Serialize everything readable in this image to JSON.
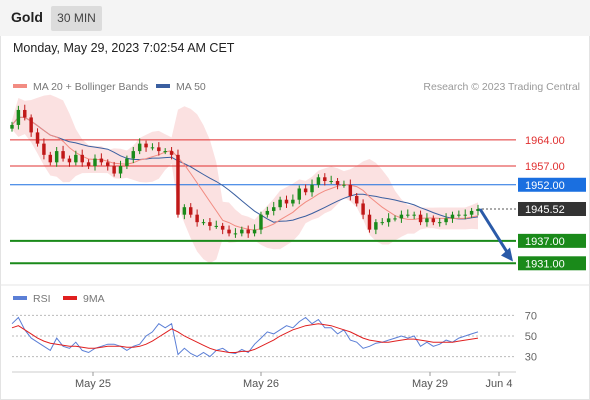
{
  "header": {
    "instrument": "Gold",
    "timeframe": "30 MIN"
  },
  "datetime": "Monday, May 29, 2023 7:02:54 AM CET",
  "legend": [
    {
      "label": "MA 20 + Bollinger Bands",
      "color": "#f28c82"
    },
    {
      "label": "MA 50",
      "color": "#3a5fa0"
    }
  ],
  "rsi_legend": [
    {
      "label": "RSI",
      "color": "#5b7fd6"
    },
    {
      "label": "9MA",
      "color": "#e02020"
    }
  ],
  "copyright": "Research © 2023 Trading Central",
  "colors": {
    "resistance": "#e03030",
    "pivot": "#1a6fe0",
    "support": "#1a8a1a",
    "last_price": "#333333",
    "candle_up": "#1a8a1a",
    "candle_down": "#c01818",
    "bollinger_band": "#fadcdc",
    "ma20": "#f28c82",
    "ma50": "#3a5fa0",
    "forecast_arrow": "#2a5aa8"
  },
  "chart_data": [
    {
      "type": "candlestick",
      "title": "Gold",
      "timeframe": "30 MIN",
      "x_ticks": [
        "May 25",
        "May 26",
        "May 29",
        "Jun 4"
      ],
      "y_range": [
        1926,
        1976
      ],
      "last_price": 1945.52,
      "levels": [
        {
          "value": 1964.0,
          "label": "1964.00",
          "kind": "resistance"
        },
        {
          "value": 1957.0,
          "label": "1957.00",
          "kind": "resistance"
        },
        {
          "value": 1952.0,
          "label": "1952.00",
          "kind": "pivot"
        },
        {
          "value": 1937.0,
          "label": "1937.00",
          "kind": "support"
        },
        {
          "value": 1931.0,
          "label": "1931.00",
          "kind": "support"
        }
      ],
      "price_path": [
        1968,
        1972,
        1970,
        1966,
        1963,
        1960,
        1958,
        1961,
        1959,
        1958,
        1960,
        1958,
        1957,
        1959,
        1958,
        1957,
        1955,
        1957,
        1959,
        1961,
        1963,
        1962,
        1962,
        1961,
        1961,
        1960,
        1944,
        1946,
        1944,
        1942,
        1942,
        1941,
        1941,
        1940,
        1939,
        1939,
        1940,
        1939,
        1940,
        1944,
        1945,
        1946,
        1948,
        1947,
        1948,
        1951,
        1950,
        1952,
        1954,
        1953,
        1953,
        1952,
        1952,
        1949,
        1947,
        1944,
        1940,
        1942,
        1942,
        1943,
        1943,
        1944,
        1944,
        1944,
        1942,
        1943,
        1942,
        1942,
        1943,
        1944,
        1944,
        1944,
        1945,
        1945.52
      ],
      "forecast_arrow": {
        "from": 1945.52,
        "to": 1932
      },
      "series": [
        {
          "name": "MA 20 + Bollinger Bands"
        },
        {
          "name": "MA 50"
        }
      ]
    },
    {
      "type": "line",
      "y_ticks": [
        70,
        50,
        30
      ],
      "y_range": [
        15,
        85
      ],
      "series": [
        {
          "name": "RSI",
          "values": [
            62,
            68,
            56,
            48,
            44,
            40,
            36,
            48,
            40,
            38,
            44,
            36,
            34,
            38,
            40,
            42,
            42,
            40,
            36,
            40,
            42,
            50,
            54,
            62,
            58,
            62,
            32,
            38,
            33,
            30,
            34,
            30,
            36,
            38,
            34,
            33,
            37,
            34,
            42,
            48,
            54,
            52,
            56,
            60,
            58,
            64,
            68,
            62,
            66,
            58,
            58,
            52,
            56,
            46,
            44,
            38,
            40,
            43,
            44,
            46,
            48,
            50,
            48,
            50,
            40,
            44,
            40,
            42,
            46,
            44,
            48,
            50,
            52,
            54
          ]
        },
        {
          "name": "9MA",
          "values": [
            58,
            60,
            56,
            52,
            48,
            45,
            43,
            42,
            41,
            40,
            40,
            39,
            38,
            38,
            39,
            40,
            40,
            40,
            39,
            39,
            40,
            42,
            45,
            49,
            53,
            57,
            54,
            50,
            47,
            44,
            41,
            38,
            36,
            35,
            34,
            34,
            35,
            35,
            37,
            40,
            43,
            46,
            50,
            53,
            56,
            58,
            60,
            61,
            62,
            61,
            60,
            58,
            56,
            54,
            51,
            48,
            46,
            45,
            44,
            44,
            45,
            46,
            47,
            47,
            46,
            45,
            44,
            44,
            44,
            44,
            45,
            46,
            47,
            48
          ]
        }
      ]
    }
  ]
}
